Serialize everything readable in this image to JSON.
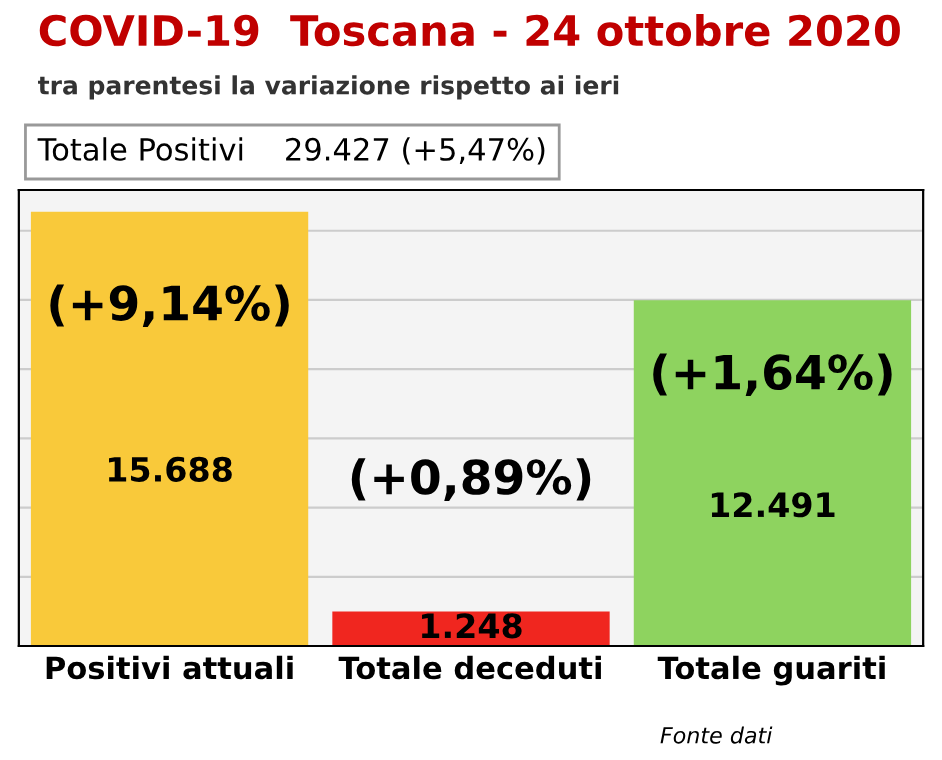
{
  "chart_data": {
    "type": "bar",
    "title": "COVID-19  Toscana - 24 ottobre 2020",
    "subtitle": "tra parentesi la variazione rispetto ai ieri",
    "categories": [
      "Positivi attuali",
      "Totale deceduti",
      "Totale guariti"
    ],
    "values": [
      15688,
      1248,
      12491
    ],
    "colors": [
      "#f9c93a",
      "#f0261f",
      "#8ed35f"
    ],
    "value_labels": [
      "15.688",
      "1.248",
      "12.491"
    ],
    "annotations": [
      "Totale Positivi    29.427 (+5,47%)",
      "(+9,14%)",
      "(+0,89%)",
      "(+1,64%)",
      "Fonte dati"
    ],
    "grid": "y"
  }
}
